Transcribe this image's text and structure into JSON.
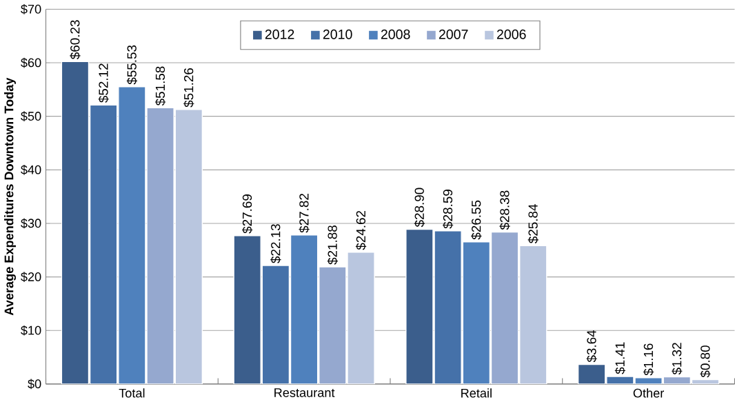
{
  "chart_data": {
    "type": "bar",
    "ylabel": "Average Expenditures Downtown Today",
    "categories": [
      "Total",
      "Restaurant",
      "Retail",
      "Other"
    ],
    "series": [
      {
        "name": "2012",
        "color": "#3b5e8c",
        "values": [
          60.23,
          27.69,
          28.9,
          3.64
        ],
        "value_labels": [
          "$60.23",
          "$27.69",
          "$28.90",
          "$3.64"
        ]
      },
      {
        "name": "2010",
        "color": "#4571a9",
        "values": [
          52.12,
          22.13,
          28.59,
          1.41
        ],
        "value_labels": [
          "$52.12",
          "$22.13",
          "$28.59",
          "$1.41"
        ]
      },
      {
        "name": "2008",
        "color": "#4f81bd",
        "values": [
          55.53,
          27.82,
          26.55,
          1.16
        ],
        "value_labels": [
          "$55.53",
          "$27.82",
          "$26.55",
          "$1.16"
        ]
      },
      {
        "name": "2007",
        "color": "#95a8cf",
        "values": [
          51.58,
          21.88,
          28.38,
          1.32
        ],
        "value_labels": [
          "$51.58",
          "$21.88",
          "$28.38",
          "$1.32"
        ]
      },
      {
        "name": "2006",
        "color": "#b9c6df",
        "values": [
          51.26,
          24.62,
          25.84,
          0.8
        ],
        "value_labels": [
          "$51.26",
          "$24.62",
          "$25.84",
          "$0.80"
        ]
      }
    ],
    "ylim": [
      0,
      70
    ],
    "yticks": [
      {
        "value": 0,
        "label": "$0"
      },
      {
        "value": 10,
        "label": "$10"
      },
      {
        "value": 20,
        "label": "$20"
      },
      {
        "value": 30,
        "label": "$30"
      },
      {
        "value": 40,
        "label": "$40"
      },
      {
        "value": 50,
        "label": "$50"
      },
      {
        "value": 60,
        "label": "$60"
      },
      {
        "value": 70,
        "label": "$70"
      }
    ],
    "grid": "y",
    "legend": "top"
  }
}
